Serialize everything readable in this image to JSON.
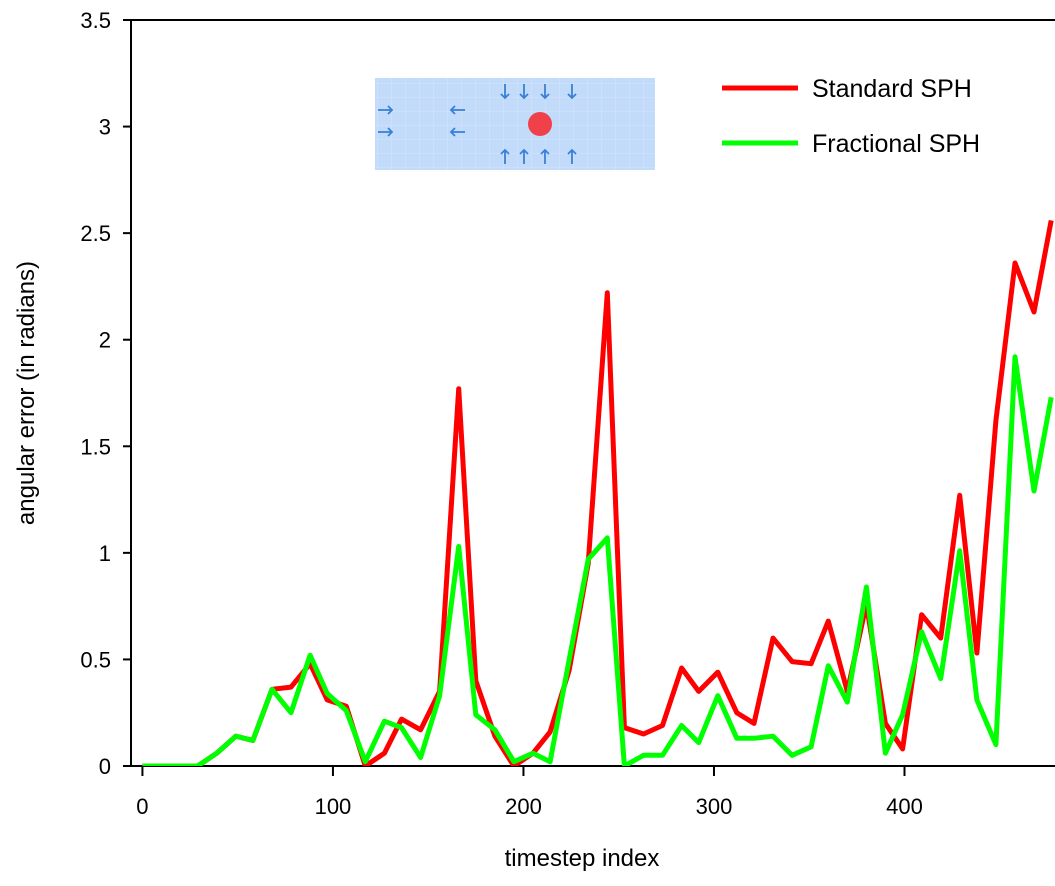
{
  "chart_data": {
    "type": "line",
    "x_label": "timestep index",
    "y_label": "angular error (in radians)",
    "x": [
      0,
      10,
      19,
      29,
      39,
      49,
      58,
      68,
      78,
      88,
      97,
      107,
      117,
      127,
      136,
      146,
      156,
      166,
      175,
      185,
      195,
      205,
      214,
      224,
      234,
      244,
      253,
      263,
      273,
      283,
      292,
      302,
      312,
      321,
      331,
      341,
      351,
      360,
      370,
      380,
      390,
      399,
      409,
      419,
      429,
      438,
      448,
      458,
      468,
      477
    ],
    "series": [
      {
        "name": "Standard SPH",
        "color": "#ff0000",
        "values": [
          0,
          0,
          0,
          0,
          0.06,
          0.14,
          0.12,
          0.36,
          0.37,
          0.48,
          0.31,
          0.28,
          0,
          0.06,
          0.22,
          0.17,
          0.35,
          1.77,
          0.4,
          0.14,
          0,
          0.06,
          0.16,
          0.45,
          0.95,
          2.22,
          0.18,
          0.15,
          0.19,
          0.46,
          0.35,
          0.44,
          0.25,
          0.2,
          0.6,
          0.49,
          0.48,
          0.68,
          0.35,
          0.76,
          0.2,
          0.08,
          0.71,
          0.6,
          1.27,
          0.53,
          1.62,
          2.36,
          2.13,
          2.56
        ]
      },
      {
        "name": "Fractional SPH",
        "color": "#00ff00",
        "values": [
          0,
          0,
          0,
          0,
          0.06,
          0.14,
          0.12,
          0.36,
          0.25,
          0.52,
          0.34,
          0.26,
          0.02,
          0.21,
          0.18,
          0.04,
          0.33,
          1.03,
          0.24,
          0.17,
          0.02,
          0.06,
          0.02,
          0.5,
          0.97,
          1.07,
          0,
          0.05,
          0.05,
          0.19,
          0.11,
          0.33,
          0.13,
          0.13,
          0.14,
          0.05,
          0.09,
          0.47,
          0.3,
          0.84,
          0.06,
          0.24,
          0.63,
          0.41,
          1.01,
          0.31,
          0.1,
          1.92,
          1.29,
          1.73
        ]
      }
    ],
    "xlim": [
      -6,
      479
    ],
    "ylim": [
      0,
      3.5
    ],
    "xticks": [
      0,
      100,
      200,
      300,
      400
    ],
    "yticks": [
      0,
      0.5,
      1,
      1.5,
      2,
      2.5,
      3,
      3.5
    ],
    "legend": "top-right"
  }
}
